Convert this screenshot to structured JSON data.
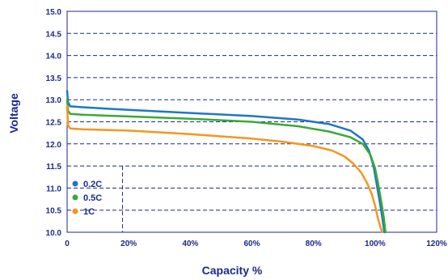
{
  "chart_data": {
    "type": "line",
    "xlabel": "Capacity %",
    "ylabel": "Voltage",
    "xlim": [
      0,
      120
    ],
    "ylim": [
      10.0,
      15.0
    ],
    "x_ticks": [
      "0",
      "20%",
      "40%",
      "60%",
      "80%",
      "100%",
      "120%"
    ],
    "y_ticks": [
      "10.0",
      "10.5",
      "11.0",
      "11.5",
      "12.0",
      "12.5",
      "13.0",
      "13.5",
      "14.0",
      "14.5",
      "15.0"
    ],
    "grid": "dashed horizontal",
    "legend_position": "bottom-left",
    "series": [
      {
        "name": "0.2C",
        "color": "#1f77c4",
        "x": [
          0,
          0.3,
          1,
          5,
          20,
          40,
          60,
          75,
          85,
          92,
          96,
          98,
          99.5,
          100.5,
          101.5,
          102.3,
          102.8,
          103.0
        ],
        "y": [
          13.2,
          12.95,
          12.85,
          12.83,
          12.77,
          12.7,
          12.63,
          12.55,
          12.45,
          12.3,
          12.1,
          11.85,
          11.5,
          11.1,
          10.7,
          10.35,
          10.1,
          10.0
        ]
      },
      {
        "name": "0.5C",
        "color": "#3aa935",
        "x": [
          0,
          0.3,
          1,
          5,
          20,
          40,
          60,
          75,
          85,
          92,
          96,
          98.5,
          100,
          101,
          102,
          102.8,
          103.2,
          103.4
        ],
        "y": [
          13.0,
          12.75,
          12.68,
          12.66,
          12.62,
          12.57,
          12.5,
          12.4,
          12.28,
          12.15,
          12.0,
          11.75,
          11.45,
          11.1,
          10.7,
          10.35,
          10.1,
          10.0
        ]
      },
      {
        "name": "1C",
        "color": "#f5961e",
        "x": [
          0,
          0.3,
          1,
          5,
          20,
          40,
          60,
          70,
          80,
          86,
          90,
          93,
          95.5,
          97.5,
          99,
          100,
          101,
          101.8,
          102.3
        ],
        "y": [
          12.85,
          12.42,
          12.35,
          12.33,
          12.3,
          12.22,
          12.12,
          12.05,
          11.95,
          11.85,
          11.72,
          11.55,
          11.35,
          11.1,
          10.85,
          10.6,
          10.3,
          10.1,
          10.0
        ]
      }
    ]
  }
}
